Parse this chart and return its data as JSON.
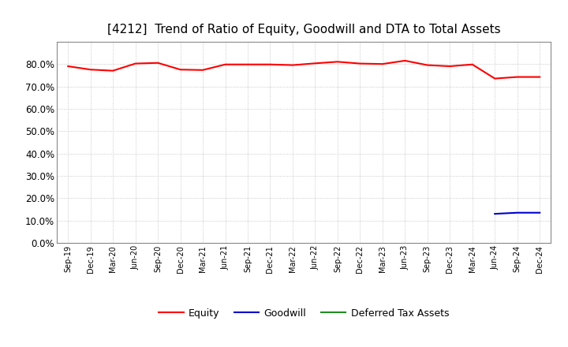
{
  "title": "[4212]  Trend of Ratio of Equity, Goodwill and DTA to Total Assets",
  "x_labels": [
    "Sep-19",
    "Dec-19",
    "Mar-20",
    "Jun-20",
    "Sep-20",
    "Dec-20",
    "Mar-21",
    "Jun-21",
    "Sep-21",
    "Dec-21",
    "Mar-22",
    "Jun-22",
    "Sep-22",
    "Dec-22",
    "Mar-23",
    "Jun-23",
    "Sep-23",
    "Dec-23",
    "Mar-24",
    "Jun-24",
    "Sep-24",
    "Dec-24"
  ],
  "equity": [
    79.0,
    77.5,
    77.0,
    80.2,
    80.5,
    77.5,
    77.3,
    79.8,
    79.8,
    79.8,
    79.5,
    80.3,
    81.0,
    80.2,
    80.0,
    81.5,
    79.5,
    79.0,
    79.8,
    73.5,
    74.2,
    74.2
  ],
  "goodwill": [
    null,
    null,
    null,
    null,
    null,
    null,
    null,
    null,
    null,
    null,
    null,
    null,
    null,
    null,
    null,
    null,
    null,
    null,
    null,
    13.0,
    13.5,
    13.5
  ],
  "deferred_tax": [
    null,
    null,
    null,
    null,
    null,
    null,
    null,
    null,
    null,
    null,
    null,
    null,
    null,
    null,
    null,
    null,
    null,
    null,
    null,
    null,
    null,
    null
  ],
  "equity_color": "#ff0000",
  "goodwill_color": "#0000cd",
  "dta_color": "#228b22",
  "ylim": [
    0.0,
    90.0
  ],
  "yticks": [
    0.0,
    10.0,
    20.0,
    30.0,
    40.0,
    50.0,
    60.0,
    70.0,
    80.0
  ],
  "bg_color": "#ffffff",
  "grid_color": "#bbbbbb",
  "title_fontsize": 11,
  "legend_labels": [
    "Equity",
    "Goodwill",
    "Deferred Tax Assets"
  ]
}
